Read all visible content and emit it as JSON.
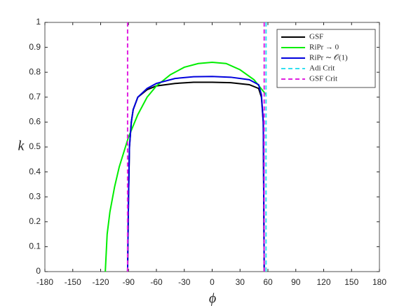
{
  "chart_data": {
    "type": "line",
    "xlabel": "ϕ",
    "ylabel": "k",
    "xlim": [
      -180,
      180
    ],
    "xticks": [
      -180,
      -150,
      -120,
      -90,
      -60,
      -30,
      0,
      30,
      60,
      90,
      120,
      150,
      180
    ],
    "ylim": [
      0,
      1
    ],
    "yticks": [
      0,
      0.1,
      0.2,
      0.3,
      0.4,
      0.5,
      0.6,
      0.7,
      0.8,
      0.9,
      1
    ],
    "grid": false,
    "legend": "upper right",
    "series": [
      {
        "name": "GSF",
        "color": "#000000",
        "dash": false,
        "x": [
          -91,
          -90,
          -89,
          -87,
          -85,
          -80,
          -70,
          -60,
          -40,
          -20,
          0,
          20,
          40,
          50,
          53,
          55,
          56
        ],
        "values": [
          0,
          0.3,
          0.5,
          0.6,
          0.65,
          0.7,
          0.73,
          0.745,
          0.755,
          0.76,
          0.76,
          0.758,
          0.75,
          0.735,
          0.7,
          0.6,
          0
        ]
      },
      {
        "name": "RiPr → 0",
        "color": "#00ee00",
        "dash": false,
        "x": [
          -115,
          -113,
          -110,
          -105,
          -100,
          -90,
          -80,
          -70,
          -60,
          -45,
          -30,
          -15,
          0,
          15,
          30,
          45,
          58
        ],
        "values": [
          0,
          0.15,
          0.24,
          0.34,
          0.42,
          0.54,
          0.63,
          0.7,
          0.745,
          0.79,
          0.82,
          0.835,
          0.84,
          0.835,
          0.81,
          0.77,
          0.71
        ]
      },
      {
        "name": "RiPr ∼ 𝒪(1)",
        "color": "#0000dd",
        "dash": false,
        "x": [
          -91,
          -90,
          -89,
          -87,
          -85,
          -80,
          -70,
          -60,
          -40,
          -20,
          0,
          20,
          40,
          50,
          53,
          55,
          56
        ],
        "values": [
          0,
          0.3,
          0.5,
          0.6,
          0.65,
          0.7,
          0.735,
          0.755,
          0.775,
          0.782,
          0.783,
          0.78,
          0.77,
          0.75,
          0.71,
          0.6,
          0
        ]
      },
      {
        "name": "Adi Crit",
        "color": "#33e0f0",
        "dash": true,
        "x": [
          58,
          58
        ],
        "values": [
          0,
          1
        ]
      },
      {
        "name": "GSF Crit",
        "color": "#e020e0",
        "dash": true,
        "x": [
          -91,
          -91,
          null,
          56,
          56
        ],
        "values": [
          0,
          1,
          null,
          0,
          1
        ]
      }
    ]
  }
}
